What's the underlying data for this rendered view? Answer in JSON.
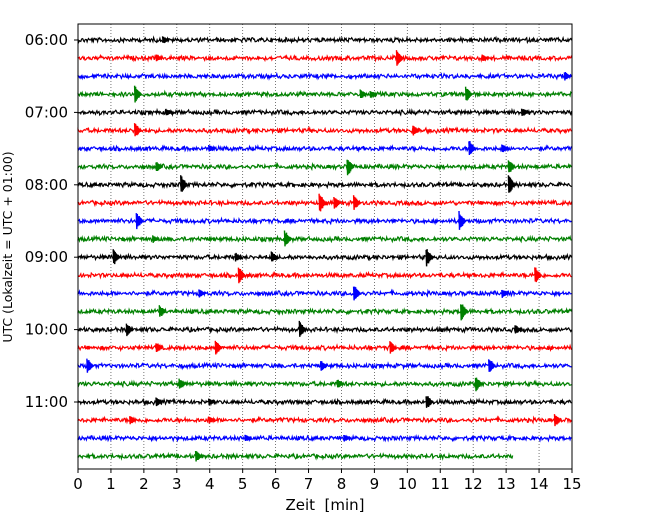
{
  "chart_data": {
    "type": "line",
    "title": "",
    "xlabel": "Zeit  [min]",
    "ylabel": "UTC (Lokalzeit = UTC + 01:00)",
    "xlim": [
      0,
      15
    ],
    "x_ticks": [
      "0",
      "1",
      "2",
      "3",
      "4",
      "5",
      "6",
      "7",
      "8",
      "9",
      "10",
      "11",
      "12",
      "13",
      "14",
      "15"
    ],
    "y_tick_labels": [
      "06:00",
      "07:00",
      "08:00",
      "09:00",
      "10:00",
      "11:00"
    ],
    "row_interval_min": 15,
    "start_time": "06:00",
    "grid": "vertical dotted at each minute",
    "colors": [
      "#000000",
      "#ff0000",
      "#0000ff",
      "#008000"
    ],
    "series": [
      {
        "start": "06:00",
        "color": "#000000",
        "events": [
          [
            2.6,
            4
          ]
        ],
        "end_min": 15
      },
      {
        "start": "06:15",
        "color": "#ff0000",
        "events": [
          [
            2.4,
            4
          ],
          [
            9.7,
            9
          ],
          [
            12.3,
            4
          ]
        ],
        "end_min": 15
      },
      {
        "start": "06:30",
        "color": "#0000ff",
        "events": [
          [
            14.8,
            5
          ]
        ],
        "end_min": 15
      },
      {
        "start": "06:45",
        "color": "#008000",
        "events": [
          [
            1.75,
            9
          ],
          [
            8.6,
            5
          ],
          [
            8.9,
            4
          ],
          [
            11.8,
            8
          ]
        ],
        "end_min": 15
      },
      {
        "start": "07:00",
        "color": "#000000",
        "events": [
          [
            2.7,
            4
          ],
          [
            13.5,
            5
          ]
        ],
        "end_min": 15
      },
      {
        "start": "07:15",
        "color": "#ff0000",
        "events": [
          [
            1.75,
            8
          ],
          [
            10.2,
            6
          ]
        ],
        "end_min": 15
      },
      {
        "start": "07:30",
        "color": "#0000ff",
        "events": [
          [
            4.0,
            4
          ],
          [
            11.9,
            9
          ],
          [
            12.9,
            5
          ]
        ],
        "end_min": 15
      },
      {
        "start": "07:45",
        "color": "#008000",
        "events": [
          [
            2.4,
            6
          ],
          [
            8.2,
            10
          ],
          [
            13.1,
            8
          ]
        ],
        "end_min": 15
      },
      {
        "start": "08:00",
        "color": "#000000",
        "events": [
          [
            3.15,
            10
          ],
          [
            13.1,
            10
          ]
        ],
        "end_min": 15
      },
      {
        "start": "08:15",
        "color": "#ff0000",
        "events": [
          [
            7.35,
            11
          ],
          [
            8.4,
            8
          ],
          [
            7.8,
            7
          ]
        ],
        "end_min": 15
      },
      {
        "start": "08:30",
        "color": "#0000ff",
        "events": [
          [
            1.8,
            9
          ],
          [
            11.6,
            10
          ]
        ],
        "end_min": 15
      },
      {
        "start": "08:45",
        "color": "#008000",
        "events": [
          [
            6.3,
            9
          ],
          [
            2.3,
            4
          ]
        ],
        "end_min": 15
      },
      {
        "start": "09:00",
        "color": "#000000",
        "events": [
          [
            1.1,
            9
          ],
          [
            4.8,
            5
          ],
          [
            5.9,
            6
          ],
          [
            10.6,
            10
          ]
        ],
        "end_min": 15
      },
      {
        "start": "09:15",
        "color": "#ff0000",
        "events": [
          [
            4.9,
            9
          ],
          [
            13.9,
            9
          ]
        ],
        "end_min": 15
      },
      {
        "start": "09:30",
        "color": "#0000ff",
        "events": [
          [
            3.7,
            5
          ],
          [
            8.4,
            9
          ],
          [
            12.9,
            5
          ]
        ],
        "end_min": 15
      },
      {
        "start": "09:45",
        "color": "#008000",
        "events": [
          [
            2.5,
            7
          ],
          [
            11.65,
            10
          ]
        ],
        "end_min": 15
      },
      {
        "start": "10:00",
        "color": "#000000",
        "events": [
          [
            1.5,
            7
          ],
          [
            6.75,
            9
          ],
          [
            13.3,
            5
          ]
        ],
        "end_min": 15
      },
      {
        "start": "10:15",
        "color": "#ff0000",
        "events": [
          [
            4.2,
            8
          ],
          [
            9.5,
            7
          ],
          [
            2.4,
            6
          ]
        ],
        "end_min": 15
      },
      {
        "start": "10:30",
        "color": "#0000ff",
        "events": [
          [
            0.3,
            8
          ],
          [
            7.4,
            6
          ],
          [
            12.5,
            9
          ]
        ],
        "end_min": 15
      },
      {
        "start": "10:45",
        "color": "#008000",
        "events": [
          [
            3.1,
            6
          ],
          [
            12.1,
            8
          ],
          [
            7.9,
            5
          ]
        ],
        "end_min": 15
      },
      {
        "start": "11:00",
        "color": "#000000",
        "events": [
          [
            2.4,
            5
          ],
          [
            10.6,
            8
          ],
          [
            4.0,
            4
          ]
        ],
        "end_min": 15
      },
      {
        "start": "11:15",
        "color": "#ff0000",
        "events": [
          [
            4.0,
            4
          ],
          [
            1.6,
            5
          ],
          [
            14.5,
            7
          ]
        ],
        "end_min": 15
      },
      {
        "start": "11:30",
        "color": "#0000ff",
        "events": [
          [
            5.1,
            4
          ],
          [
            8.1,
            4
          ]
        ],
        "end_min": 15
      },
      {
        "start": "11:45",
        "color": "#008000",
        "events": [
          [
            3.6,
            6
          ]
        ],
        "end_min": 13.2
      }
    ]
  }
}
